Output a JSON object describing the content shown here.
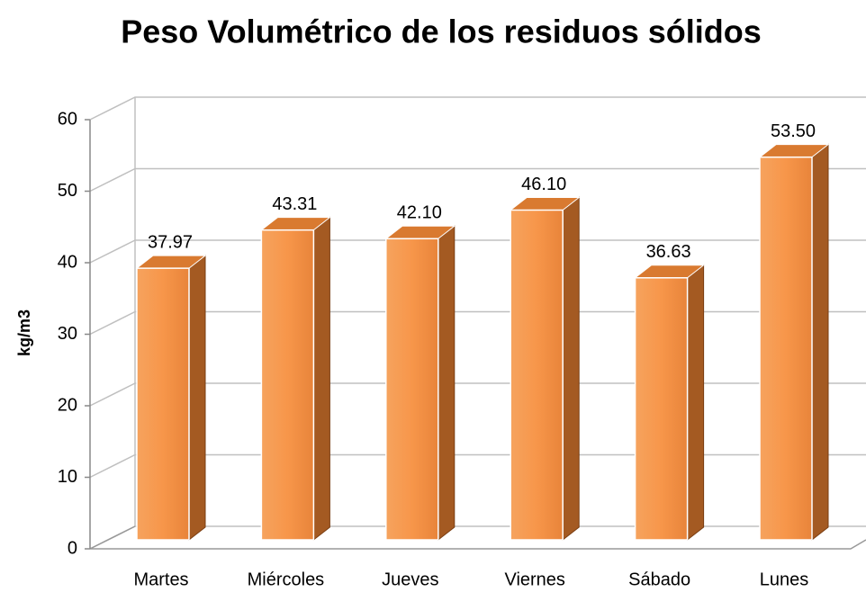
{
  "chart_data": {
    "type": "bar3d",
    "title": "Peso Volumétrico de los residuos sólidos",
    "ylabel": "kg/m3",
    "categories": [
      "Martes",
      "Miércoles",
      "Jueves",
      "Viernes",
      "Sábado",
      "Lunes"
    ],
    "values": [
      37.97,
      43.31,
      42.1,
      46.1,
      36.63,
      53.5
    ],
    "value_labels": [
      "37.97",
      "43.31",
      "42.10",
      "46.10",
      "36.63",
      "53.50"
    ],
    "color": "#f79646",
    "ylim": [
      0,
      60
    ],
    "yticks": [
      0,
      10,
      20,
      30,
      40,
      50,
      60
    ],
    "grid": true
  }
}
